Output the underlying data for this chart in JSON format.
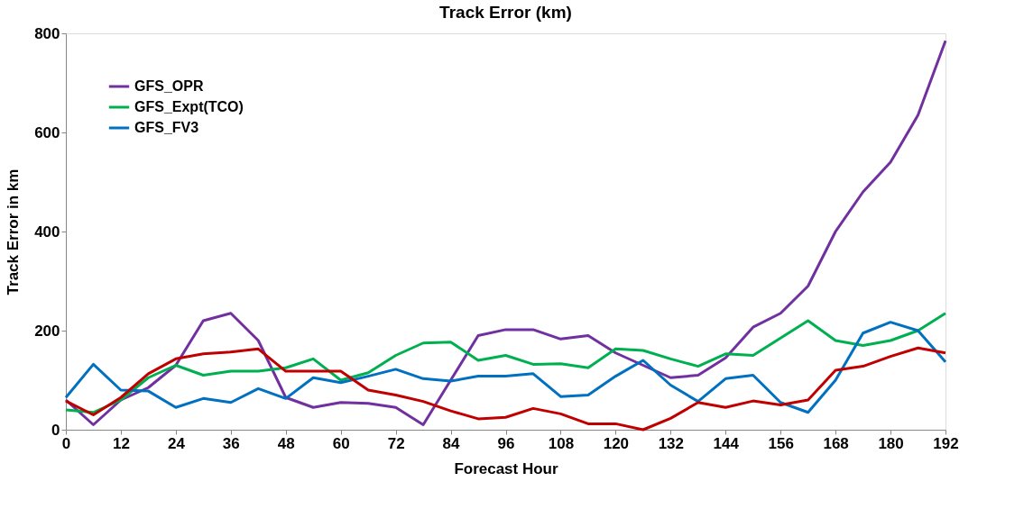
{
  "chart_data": {
    "type": "line",
    "title": "Track Error (km)",
    "xlabel": "Forecast Hour",
    "ylabel": "Track Error in km",
    "x": [
      0,
      6,
      12,
      18,
      24,
      30,
      36,
      42,
      48,
      54,
      60,
      66,
      72,
      78,
      84,
      90,
      96,
      102,
      108,
      114,
      120,
      126,
      132,
      138,
      144,
      150,
      156,
      162,
      168,
      174,
      180,
      186,
      192
    ],
    "xlim": [
      0,
      192
    ],
    "xticks": [
      0,
      12,
      24,
      36,
      48,
      60,
      72,
      84,
      96,
      108,
      120,
      132,
      144,
      156,
      168,
      180,
      192
    ],
    "ylim": [
      0,
      800
    ],
    "yticks": [
      0,
      200,
      400,
      600,
      800
    ],
    "grid": false,
    "legend": "top left",
    "marker": "none",
    "line_style": "solid",
    "series": [
      {
        "name": "GFS_OPR",
        "color": "#7030a0",
        "values": [
          60,
          10,
          60,
          85,
          130,
          220,
          235,
          180,
          65,
          45,
          55,
          53,
          45,
          10,
          100,
          190,
          202,
          202,
          183,
          190,
          155,
          130,
          105,
          110,
          145,
          207,
          235,
          290,
          400,
          480,
          540,
          635,
          785
        ]
      },
      {
        "name": "GFS_Expt(TCO)",
        "color": "#00b050",
        "values": [
          40,
          35,
          60,
          105,
          130,
          110,
          118,
          118,
          125,
          143,
          100,
          115,
          150,
          175,
          177,
          140,
          150,
          132,
          133,
          125,
          163,
          160,
          143,
          128,
          153,
          150,
          185,
          220,
          180,
          170,
          180,
          200,
          235
        ]
      },
      {
        "name": "GFS_FV3",
        "color": "#0070c0",
        "values": [
          65,
          132,
          80,
          78,
          45,
          63,
          55,
          83,
          63,
          105,
          95,
          108,
          122,
          103,
          98,
          108,
          108,
          113,
          67,
          70,
          108,
          140,
          90,
          57,
          103,
          110,
          55,
          35,
          100,
          195,
          217,
          200,
          137
        ]
      },
      {
        "color": "#c00000",
        "values": [
          58,
          30,
          65,
          113,
          143,
          153,
          157,
          163,
          118,
          118,
          118,
          80,
          70,
          57,
          38,
          22,
          25,
          43,
          32,
          12,
          12,
          0,
          23,
          55,
          45,
          58,
          50,
          60,
          120,
          128,
          148,
          165,
          155
        ]
      }
    ]
  }
}
